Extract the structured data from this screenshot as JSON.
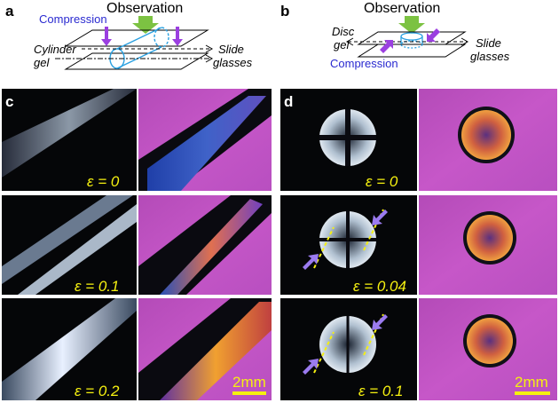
{
  "panel_a": {
    "letter": "a",
    "observation": "Observation",
    "compression": "Compression",
    "cylinder": "Cylinder",
    "gel": "gel",
    "slide": "Slide",
    "glasses": "glasses"
  },
  "panel_b": {
    "letter": "b",
    "observation": "Observation",
    "compression": "Compression",
    "disc": "Disc",
    "gel": "gel",
    "slide": "Slide",
    "glasses": "glasses"
  },
  "panel_c": {
    "letter": "c",
    "strain_labels": [
      "ε = 0",
      "ε = 0.1",
      "ε = 0.2"
    ],
    "scale_bar": "2mm"
  },
  "panel_d": {
    "letter": "d",
    "strain_labels": [
      "ε = 0",
      "ε = 0.04",
      "ε = 0.1"
    ],
    "scale_bar": "2mm"
  },
  "colors": {
    "green_arrow": "#7cc242",
    "purple_arrow": "#9b3fe0",
    "compression_text": "#2a2ad0",
    "label_yellow": "#f5f010",
    "gel_blue": "#2aa0e0",
    "magenta_bg": "#c24fc0"
  }
}
